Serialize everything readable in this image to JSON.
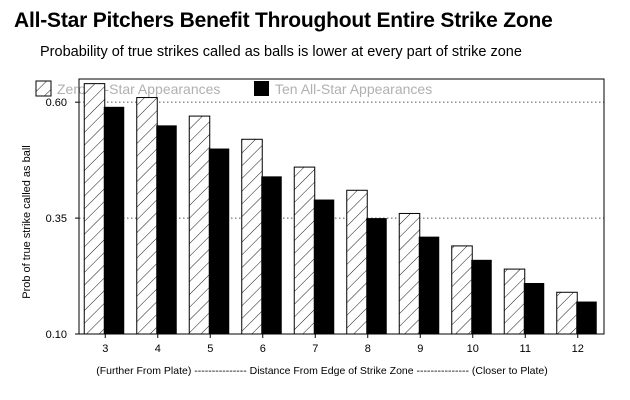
{
  "chart_data": {
    "type": "bar",
    "title": "All-Star Pitchers Benefit Throughout Entire Strike Zone",
    "subtitle": "Probability of true strikes called as balls is lower at every part of strike zone",
    "ylabel": "Prob of true strike called as ball",
    "xlabel": "(Further From Plate) --------------- Distance From Edge of Strike Zone --------------- (Closer to Plate)",
    "categories": [
      "3",
      "4",
      "5",
      "6",
      "7",
      "8",
      "9",
      "10",
      "11",
      "12"
    ],
    "ylim": [
      0.1,
      0.65
    ],
    "yticks": [
      0.1,
      0.35,
      0.6
    ],
    "ytick_labels": [
      "0.10",
      "0.35",
      "0.60"
    ],
    "grid": "dotted-horizontal",
    "legend_position": "top-left",
    "series": [
      {
        "name": "Zero All-Star Appearances",
        "style": "hatched",
        "values": [
          0.64,
          0.61,
          0.57,
          0.52,
          0.46,
          0.41,
          0.36,
          0.29,
          0.24,
          0.19
        ]
      },
      {
        "name": "Ten All-Star Appearances",
        "style": "solid",
        "color": "#000000",
        "values": [
          0.59,
          0.55,
          0.5,
          0.44,
          0.39,
          0.35,
          0.31,
          0.26,
          0.21,
          0.17
        ]
      }
    ]
  }
}
